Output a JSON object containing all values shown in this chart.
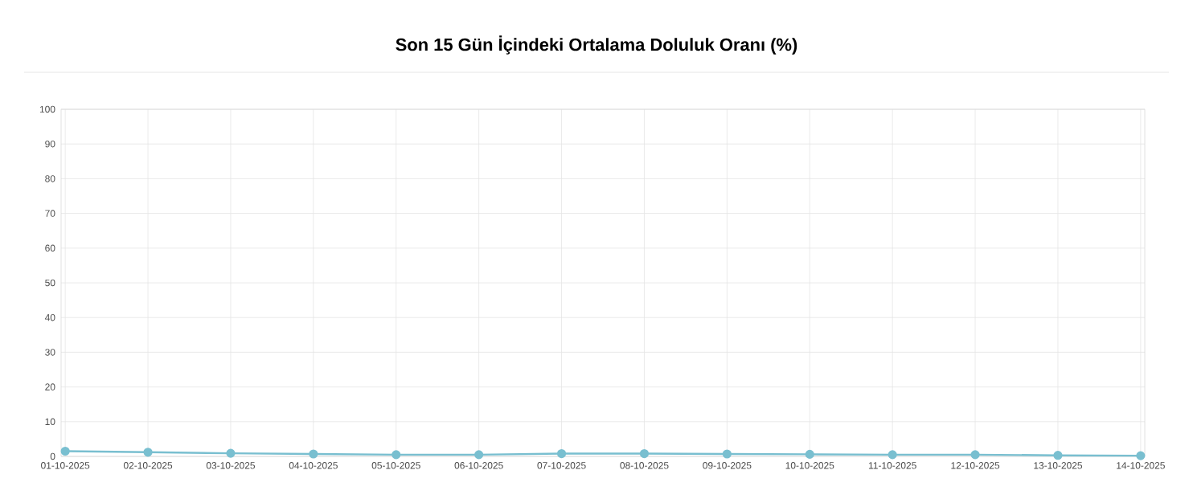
{
  "chart_data": {
    "type": "line",
    "title": "Son 15 Gün İçindeki Ortalama Doluluk Oranı (%)",
    "categories": [
      "01-10-2025",
      "02-10-2025",
      "03-10-2025",
      "04-10-2025",
      "05-10-2025",
      "06-10-2025",
      "07-10-2025",
      "08-10-2025",
      "09-10-2025",
      "10-10-2025",
      "11-10-2025",
      "12-10-2025",
      "13-10-2025",
      "14-10-2025"
    ],
    "series": [
      {
        "color": "#79bfd0",
        "values": [
          1.5,
          1.2,
          0.9,
          0.7,
          0.5,
          0.5,
          0.8,
          0.8,
          0.7,
          0.6,
          0.5,
          0.5,
          0.3,
          0.2
        ]
      }
    ],
    "ylim": [
      0,
      100
    ],
    "yticks": [
      0,
      10,
      20,
      30,
      40,
      50,
      60,
      70,
      80,
      90,
      100
    ],
    "grid": true,
    "marker": "circle",
    "line_style": "solid"
  }
}
